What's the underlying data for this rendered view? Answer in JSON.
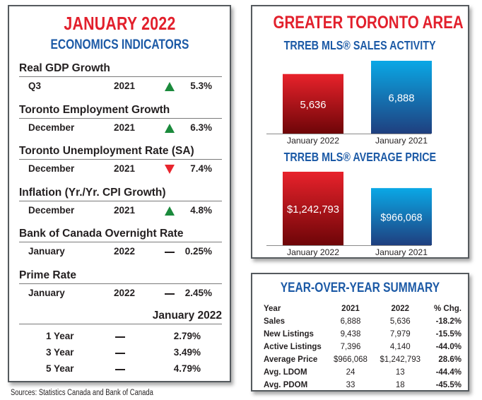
{
  "left_panel": {
    "title": "JANUARY 2022",
    "subtitle": "ECONOMICS INDICATORS",
    "indicators": [
      {
        "name": "Real GDP Growth",
        "period": "Q3",
        "year": "2021",
        "trend": "up",
        "value": "5.3%"
      },
      {
        "name": "Toronto Employment Growth",
        "period": "December",
        "year": "2021",
        "trend": "up",
        "value": "6.3%"
      },
      {
        "name": "Toronto Unemployment Rate (SA)",
        "period": "December",
        "year": "2021",
        "trend": "down",
        "value": "7.4%"
      },
      {
        "name": "Inflation (Yr./Yr. CPI Growth)",
        "period": "December",
        "year": "2021",
        "trend": "up",
        "value": "4.8%"
      },
      {
        "name": "Bank of Canada Overnight Rate",
        "period": "January",
        "year": "2022",
        "trend": "flat",
        "value": "0.25%"
      },
      {
        "name": "Prime Rate",
        "period": "January",
        "year": "2022",
        "trend": "flat",
        "value": "2.45%"
      }
    ],
    "mortgage_rates": {
      "header": "January 2022",
      "rows": [
        {
          "term": "1 Year",
          "trend": "flat",
          "value": "2.79%"
        },
        {
          "term": "3 Year",
          "trend": "flat",
          "value": "3.49%"
        },
        {
          "term": "5 Year",
          "trend": "flat",
          "value": "4.79%"
        }
      ]
    },
    "sources": "Sources: Statistics Canada and Bank of Canada"
  },
  "colors": {
    "title_red": "#e2202c",
    "title_blue": "#1c5aa6",
    "bar_red_top": "#e8222b",
    "bar_red_bottom": "#6e0508",
    "bar_blue_top": "#0aa8e6",
    "bar_blue_bottom": "#1f3f7f",
    "trend_up": "#1b8a3c",
    "trend_down": "#e8252d"
  },
  "gta_panel": {
    "title": "GREATER TORONTO AREA"
  },
  "chart_data": [
    {
      "type": "bar",
      "title": "TRREB MLS® SALES ACTIVITY",
      "categories": [
        "January 2022",
        "January 2021"
      ],
      "values": [
        5636,
        6888
      ],
      "labels": [
        "5,636",
        "6,888"
      ],
      "xlabel": "",
      "ylabel": "",
      "ylim": [
        0,
        6888
      ],
      "grid": false
    },
    {
      "type": "bar",
      "title": "TRREB MLS® AVERAGE PRICE",
      "categories": [
        "January 2022",
        "January 2021"
      ],
      "values": [
        1242793,
        966068
      ],
      "labels": [
        "$1,242,793",
        "$966,068"
      ],
      "xlabel": "",
      "ylabel": "",
      "ylim": [
        0,
        1242793
      ],
      "grid": false
    }
  ],
  "yoy_summary": {
    "title": "YEAR-OVER-YEAR SUMMARY",
    "columns": [
      "Year",
      "2021",
      "2022",
      "% Chg."
    ],
    "rows": [
      [
        "Sales",
        "6,888",
        "5,636",
        "-18.2%"
      ],
      [
        "New Listings",
        "9,438",
        "7,979",
        "-15.5%"
      ],
      [
        "Active Listings",
        "7,396",
        "4,140",
        "-44.0%"
      ],
      [
        "Average Price",
        "$966,068",
        "$1,242,793",
        "28.6%"
      ],
      [
        "Avg. LDOM",
        "24",
        "13",
        "-44.4%"
      ],
      [
        "Avg. PDOM",
        "33",
        "18",
        "-45.5%"
      ]
    ]
  }
}
